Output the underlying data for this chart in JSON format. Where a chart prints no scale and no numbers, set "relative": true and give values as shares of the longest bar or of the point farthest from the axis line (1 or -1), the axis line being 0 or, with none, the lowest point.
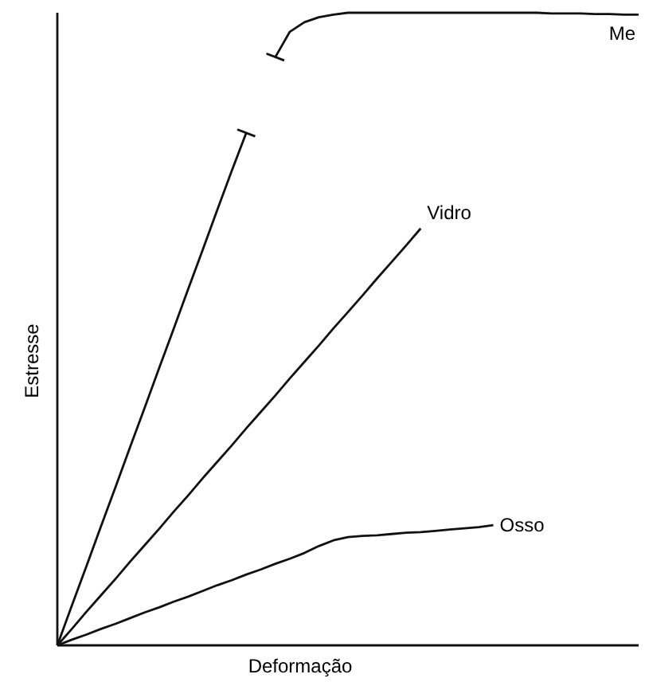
{
  "chart_data": {
    "type": "line",
    "relative": true,
    "xlabel": "Deformação",
    "ylabel": "Estresse",
    "legend": false,
    "marker": "none",
    "line_style": "solid",
    "categories": [
      null,
      null,
      null,
      null,
      null,
      null,
      null,
      null,
      null,
      null,
      null,
      null,
      null,
      null,
      null,
      null,
      null,
      null,
      null,
      null,
      null,
      null,
      null,
      null,
      null,
      null,
      null,
      null,
      null,
      null,
      null,
      null,
      null,
      null,
      null,
      null,
      null,
      null,
      null,
      null,
      null
    ],
    "series": [
      {
        "name": "Me",
        "color": "#111111",
        "values": [
          0,
          0.063,
          0.125,
          0.188,
          0.25,
          0.313,
          0.375,
          0.438,
          0.5,
          0.563,
          0.625,
          0.688,
          0.75,
          0.81,
          null,
          0.93,
          0.97,
          0.985,
          0.993,
          0.997,
          1,
          1,
          1,
          1,
          1,
          1,
          1,
          1,
          1,
          1,
          1,
          1,
          1,
          1,
          0.999,
          0.999,
          0.999,
          0.998,
          0.998,
          0.997,
          0.997
        ]
      },
      {
        "name": "Vidro",
        "color": "#111111",
        "values": [
          0,
          0.026,
          0.053,
          0.079,
          0.105,
          0.132,
          0.158,
          0.184,
          0.211,
          0.237,
          0.264,
          0.29,
          0.316,
          0.343,
          0.369,
          0.395,
          0.422,
          0.448,
          0.474,
          0.501,
          0.527,
          0.553,
          0.58,
          0.606,
          0.632,
          0.659,
          null,
          null,
          null,
          null,
          null,
          null,
          null,
          null,
          null,
          null,
          null,
          null,
          null,
          null,
          null
        ]
      },
      {
        "name": "Osso",
        "color": "#111111",
        "values": [
          0,
          0.009,
          0.017,
          0.026,
          0.034,
          0.043,
          0.052,
          0.06,
          0.069,
          0.077,
          0.086,
          0.095,
          0.103,
          0.112,
          0.12,
          0.129,
          0.137,
          0.146,
          0.157,
          0.166,
          0.171,
          0.173,
          0.174,
          0.176,
          0.178,
          0.179,
          0.181,
          0.183,
          0.185,
          0.187,
          0.19,
          null,
          null,
          null,
          null,
          null,
          null,
          null,
          null,
          null,
          null
        ]
      }
    ]
  }
}
